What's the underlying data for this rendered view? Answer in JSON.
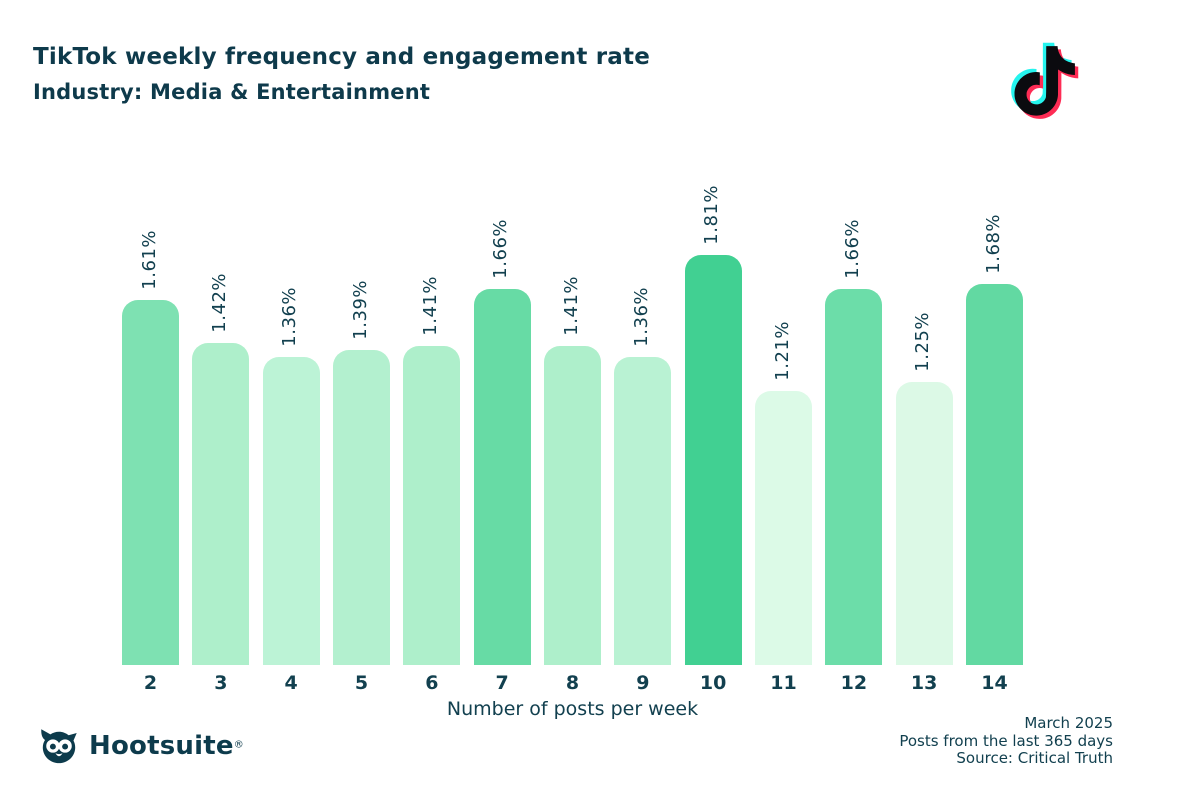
{
  "header": {
    "title": "TikTok weekly frequency and engagement rate",
    "subtitle": "Industry: Media & Entertainment",
    "text_color": "#0e3a4b"
  },
  "icons": {
    "tiktok_logo": "tiktok-note-icon",
    "hootsuite_owl": "owl-icon"
  },
  "brand_colors": {
    "tiktok_cyan": "#25f4ee",
    "tiktok_pink": "#fe2c55",
    "tiktok_black": "#0b0b0f",
    "dark_teal": "#0d3b4c"
  },
  "chart_data": {
    "type": "bar",
    "categories": [
      "2",
      "3",
      "4",
      "5",
      "6",
      "7",
      "8",
      "9",
      "10",
      "11",
      "12",
      "13",
      "14"
    ],
    "values": [
      1.61,
      1.42,
      1.36,
      1.39,
      1.41,
      1.66,
      1.41,
      1.36,
      1.81,
      1.21,
      1.66,
      1.25,
      1.68
    ],
    "labels": [
      "1.61%",
      "1.42%",
      "1.36%",
      "1.39%",
      "1.41%",
      "1.66%",
      "1.41%",
      "1.36%",
      "1.81%",
      "1.21%",
      "1.66%",
      "1.25%",
      "1.68%"
    ],
    "bar_colors": [
      "#7ee1b2",
      "#aeefcb",
      "#bcf3d6",
      "#b3f0cf",
      "#aeefcb",
      "#67dba5",
      "#aeefcb",
      "#b9f2d3",
      "#41d092",
      "#dcfae7",
      "#6cdda9",
      "#dcf9e6",
      "#62d9a2"
    ],
    "dotted": [
      false,
      false,
      true,
      false,
      false,
      false,
      false,
      false,
      false,
      true,
      false,
      true,
      false
    ],
    "title": "TikTok weekly frequency and engagement rate",
    "xlabel": "Number of posts per week",
    "ylabel": "",
    "ylim": [
      0,
      1.81
    ],
    "y_axis_visible": false,
    "grid": false,
    "legend": "none",
    "label_rotation_deg": 90
  },
  "footer": {
    "brand_name": "Hootsuite",
    "registered": "®",
    "date": "March 2025",
    "range": "Posts from the last 365 days",
    "source": "Source: Critical Truth"
  }
}
